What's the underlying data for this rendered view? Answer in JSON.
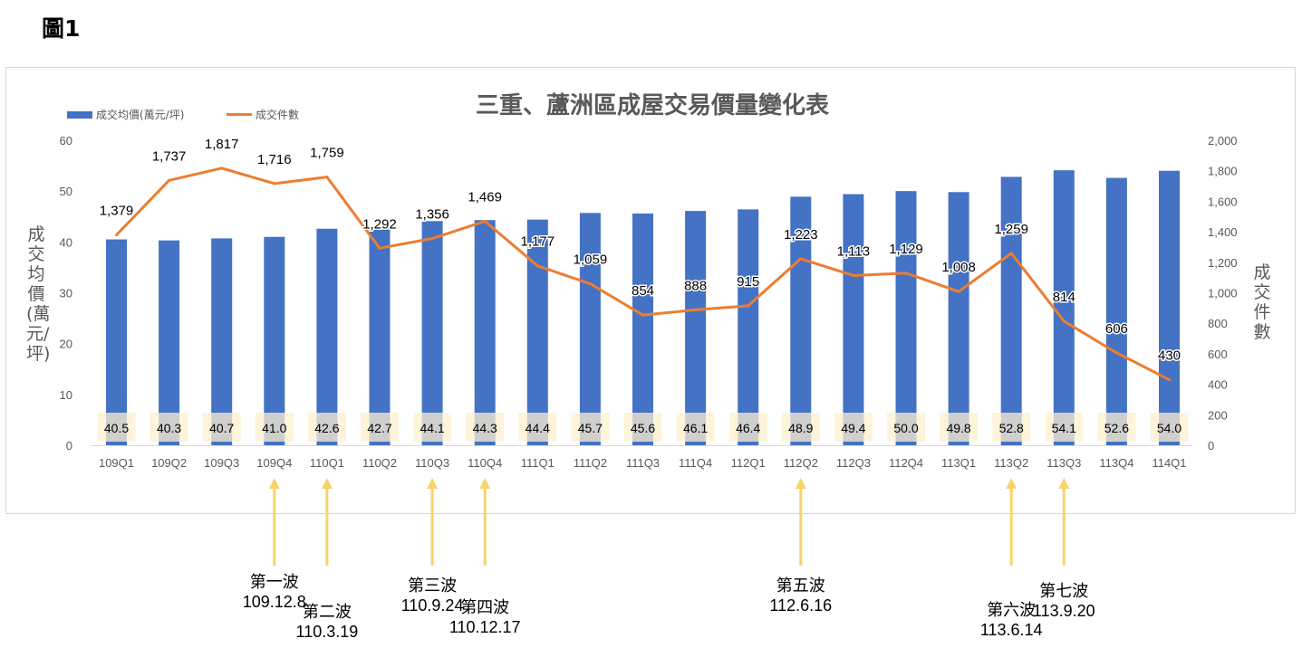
{
  "figure_label": "圖1",
  "legend": {
    "price": "成交均價(萬元/坪)",
    "count": "成交件數"
  },
  "colors": {
    "bar": "#4472c4",
    "line": "#ed7d31",
    "label_bg": "#fdf0d0",
    "arrow": "#f7d46a"
  },
  "chart_data": {
    "type": "bar+line",
    "title": "三重、蘆洲區成屋交易價量變化表",
    "categories": [
      "109Q1",
      "109Q2",
      "109Q3",
      "109Q4",
      "110Q1",
      "110Q2",
      "110Q3",
      "110Q4",
      "111Q1",
      "111Q2",
      "111Q3",
      "111Q4",
      "112Q1",
      "112Q2",
      "112Q3",
      "112Q4",
      "113Q1",
      "113Q2",
      "113Q3",
      "113Q4",
      "114Q1"
    ],
    "series": [
      {
        "name": "成交均價(萬元/坪)",
        "type": "bar",
        "axis": "left",
        "values": [
          40.5,
          40.3,
          40.7,
          41.0,
          42.6,
          42.7,
          44.1,
          44.3,
          44.4,
          45.7,
          45.6,
          46.1,
          46.4,
          48.9,
          49.4,
          50.0,
          49.8,
          52.8,
          54.1,
          52.6,
          54.0
        ],
        "labels": [
          "40.5",
          "40.3",
          "40.7",
          "41.0",
          "42.6",
          "42.7",
          "44.1",
          "44.3",
          "44.4",
          "45.7",
          "45.6",
          "46.1",
          "46.4",
          "48.9",
          "49.4",
          "50.0",
          "49.8",
          "52.8",
          "54.1",
          "52.6",
          "54.0"
        ]
      },
      {
        "name": "成交件數",
        "type": "line",
        "axis": "right",
        "values": [
          1379,
          1737,
          1817,
          1716,
          1759,
          1292,
          1356,
          1469,
          1177,
          1059,
          854,
          888,
          915,
          1223,
          1113,
          1129,
          1008,
          1259,
          814,
          606,
          430
        ],
        "labels": [
          "1,379",
          "1,737",
          "1,817",
          "1,716",
          "1,759",
          "1,292",
          "1,356",
          "1,469",
          "1,177",
          "1,059",
          "854",
          "888",
          "915",
          "1,223",
          "1,113",
          "1,129",
          "1,008",
          "1,259",
          "814",
          "606",
          "430"
        ]
      }
    ],
    "y1": {
      "label": "成交均價(萬元/坪)",
      "lim": [
        0,
        60
      ],
      "ticks": [
        "0",
        "10",
        "20",
        "30",
        "40",
        "50",
        "60"
      ]
    },
    "y2": {
      "label": "成交件數",
      "lim": [
        0,
        2000
      ],
      "ticks": [
        "0",
        "200",
        "400",
        "600",
        "800",
        "1,000",
        "1,200",
        "1,400",
        "1,600",
        "1,800",
        "2,000"
      ]
    },
    "grid": false,
    "legend_position": "top-left"
  },
  "waves": [
    {
      "name": "第一波",
      "date": "109.12.8",
      "at": "109Q4"
    },
    {
      "name": "第二波",
      "date": "110.3.19",
      "at": "110Q1"
    },
    {
      "name": "第三波",
      "date": "110.9.24",
      "at": "110Q3"
    },
    {
      "name": "第四波",
      "date": "110.12.17",
      "at": "110Q4"
    },
    {
      "name": "第五波",
      "date": "112.6.16",
      "at": "112Q2"
    },
    {
      "name": "第六波",
      "date": "113.6.14",
      "at": "113Q2"
    },
    {
      "name": "第七波",
      "date": "113.9.20",
      "at": "113Q3"
    }
  ]
}
